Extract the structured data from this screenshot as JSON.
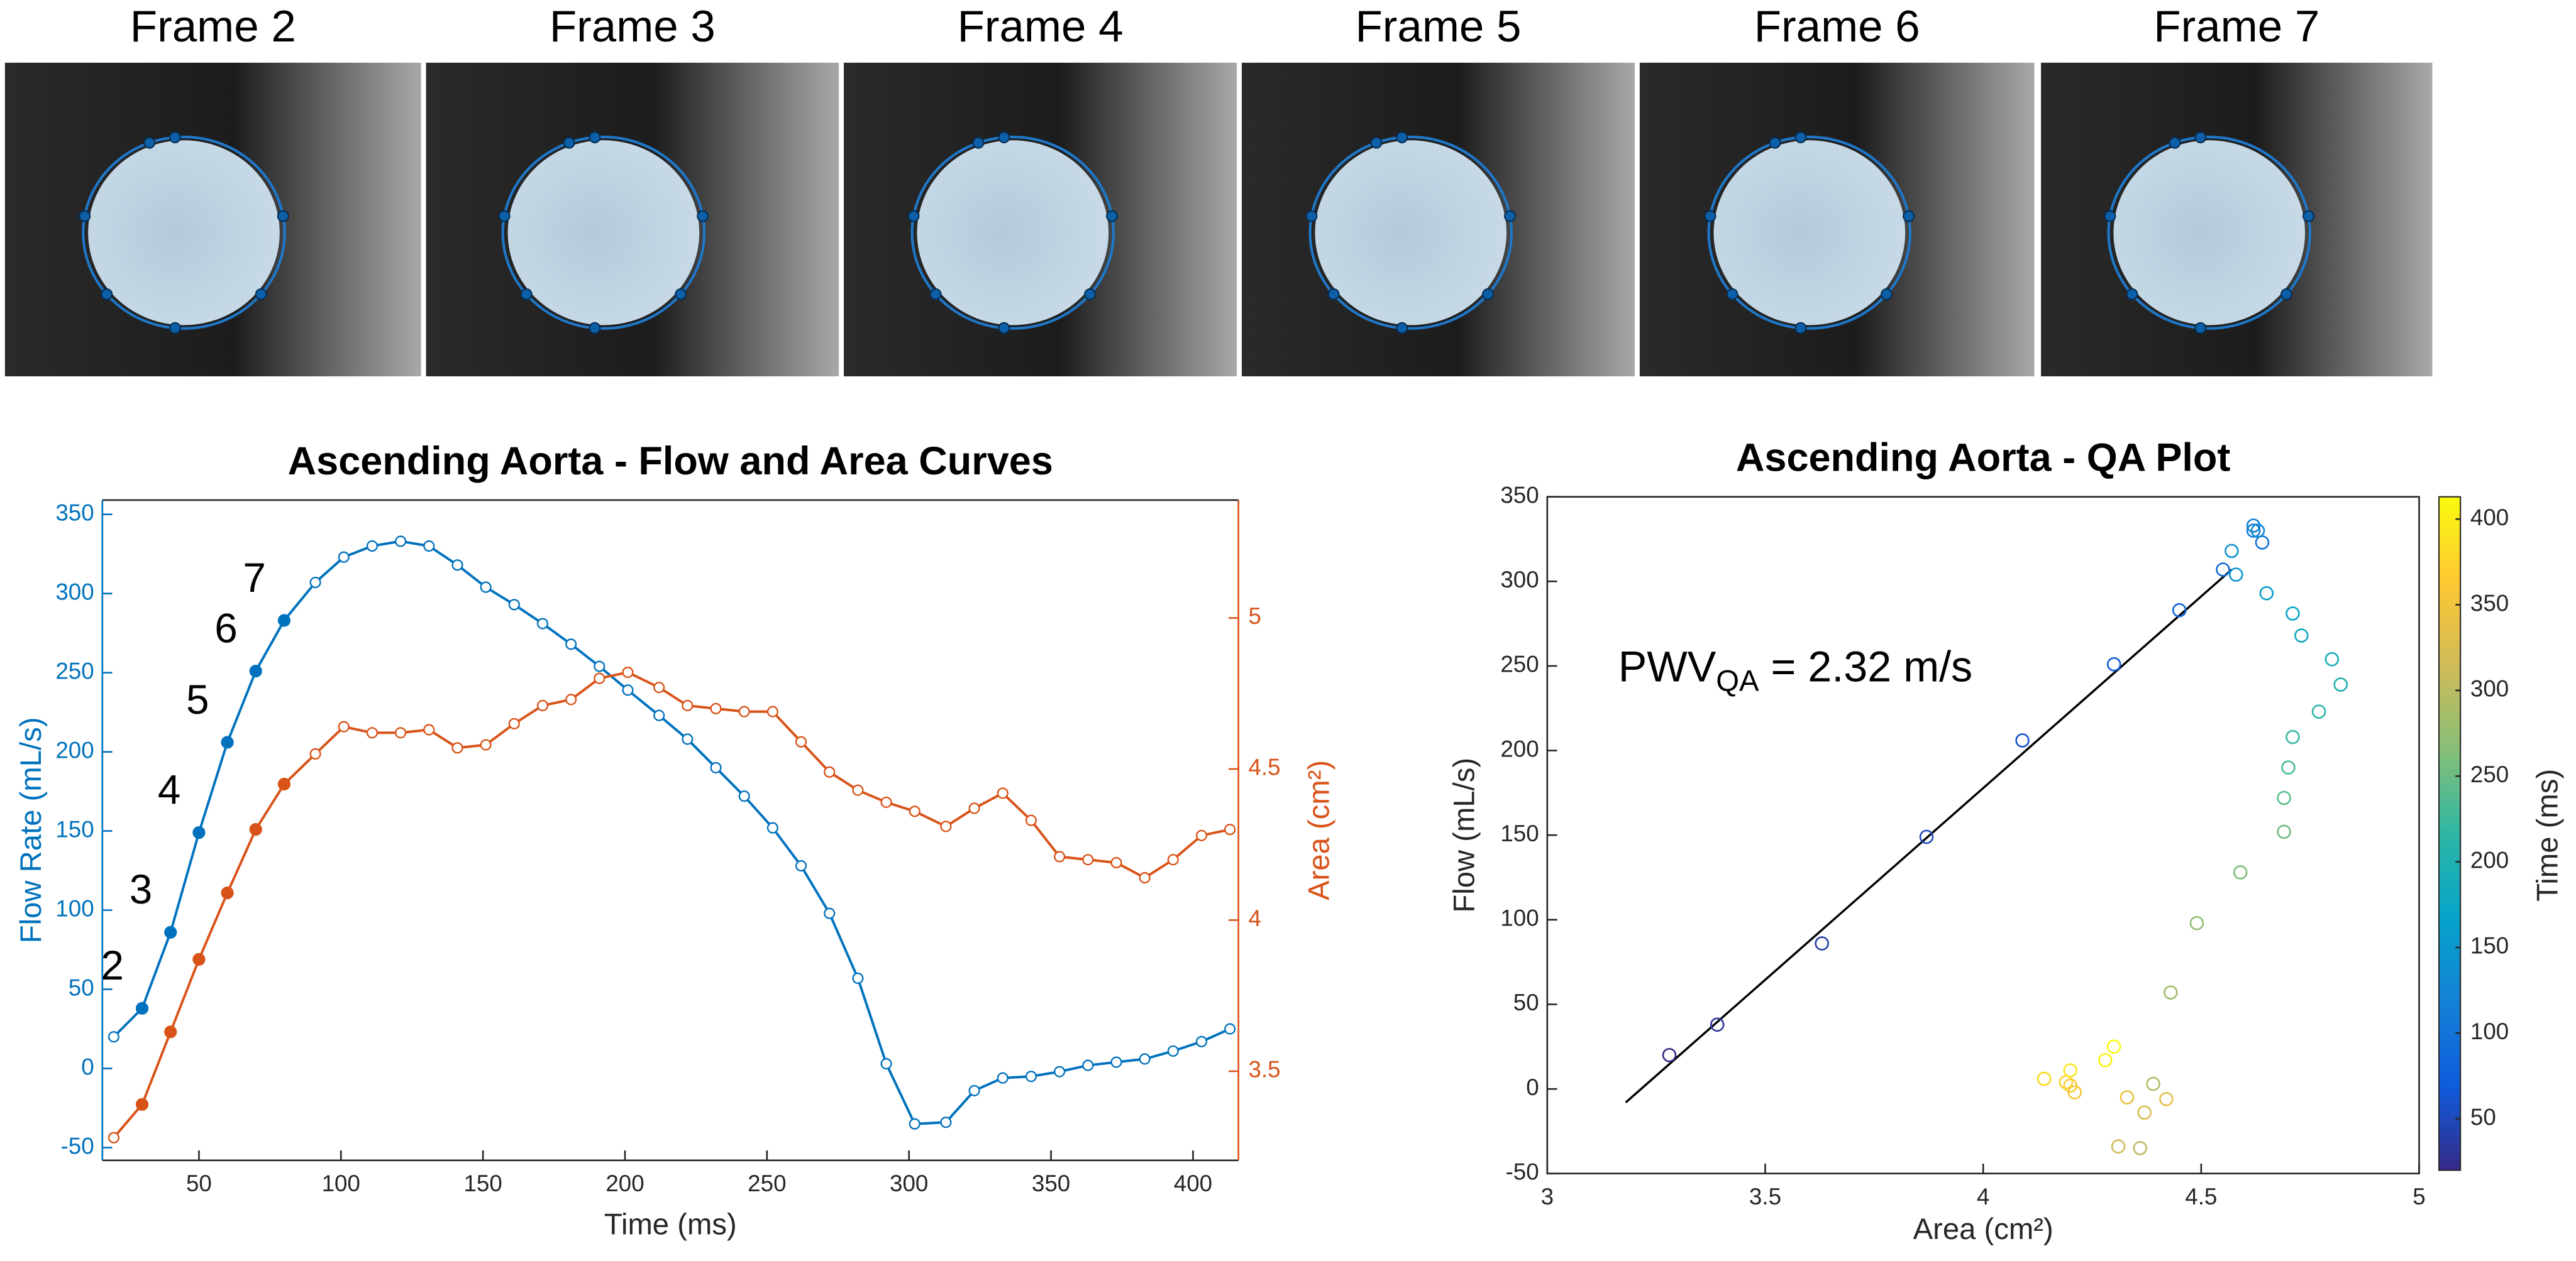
{
  "frames": [
    "Frame 2",
    "Frame 3",
    "Frame 4",
    "Frame 5",
    "Frame 6",
    "Frame 7"
  ],
  "chart_data": [
    {
      "type": "line",
      "title": "Ascending Aorta - Flow and Area Curves",
      "xlabel": "Time (ms)",
      "ylabel": "Flow Rate (mL/s)",
      "y2label": "Area (cm²)",
      "x": [
        20,
        30,
        40,
        50,
        60,
        70,
        80,
        91,
        101,
        111,
        121,
        131,
        141,
        151,
        161,
        171,
        181,
        191,
        201,
        212,
        222,
        232,
        242,
        252,
        262,
        272,
        282,
        292,
        302,
        313,
        323,
        333,
        343,
        353,
        363,
        373,
        383,
        393,
        403,
        413
      ],
      "series": [
        {
          "name": "Flow Rate",
          "color": "#0072bd",
          "axis": "y",
          "values": [
            20,
            38,
            86,
            149,
            206,
            251,
            283,
            307,
            323,
            330,
            333,
            330,
            318,
            304,
            293,
            281,
            268,
            254,
            239,
            223,
            208,
            190,
            172,
            152,
            128,
            98,
            57,
            3,
            -35,
            -34,
            -14,
            -6,
            -5,
            -2,
            2,
            4,
            6,
            11,
            17,
            25
          ]
        },
        {
          "name": "Area",
          "color": "#d95319",
          "axis": "y2",
          "values": [
            3.28,
            3.39,
            3.63,
            3.87,
            4.09,
            4.3,
            4.45,
            4.55,
            4.64,
            4.62,
            4.62,
            4.63,
            4.57,
            4.58,
            4.65,
            4.71,
            4.73,
            4.8,
            4.82,
            4.77,
            4.71,
            4.7,
            4.69,
            4.69,
            4.59,
            4.49,
            4.43,
            4.39,
            4.36,
            4.31,
            4.37,
            4.42,
            4.33,
            4.21,
            4.2,
            4.19,
            4.14,
            4.2,
            4.28,
            4.3
          ]
        }
      ],
      "annotations": [
        {
          "x": 30,
          "text": "2"
        },
        {
          "x": 40,
          "text": "3"
        },
        {
          "x": 50,
          "text": "4"
        },
        {
          "x": 60,
          "text": "5"
        },
        {
          "x": 70,
          "text": "6"
        },
        {
          "x": 80,
          "text": "7"
        }
      ],
      "xlim": [
        16,
        416
      ],
      "xticks": [
        50,
        100,
        150,
        200,
        250,
        300,
        350,
        400
      ],
      "ylim": [
        -58,
        359
      ],
      "yticks": [
        -50,
        0,
        50,
        100,
        150,
        200,
        250,
        300,
        350
      ],
      "y2lim": [
        3.205,
        5.39
      ],
      "y2ticks": [
        3.5,
        4,
        4.5,
        5
      ]
    },
    {
      "type": "scatter",
      "title": "Ascending Aorta - QA Plot",
      "xlabel": "Area (cm²)",
      "ylabel": "Flow (mL/s)",
      "x": [
        3.28,
        3.39,
        3.63,
        3.87,
        4.09,
        4.3,
        4.45,
        4.55,
        4.64,
        4.62,
        4.62,
        4.63,
        4.57,
        4.58,
        4.65,
        4.71,
        4.73,
        4.8,
        4.82,
        4.77,
        4.71,
        4.7,
        4.69,
        4.69,
        4.59,
        4.49,
        4.43,
        4.39,
        4.36,
        4.31,
        4.37,
        4.42,
        4.33,
        4.21,
        4.2,
        4.19,
        4.14,
        4.2,
        4.28,
        4.3
      ],
      "values": [
        20,
        38,
        86,
        149,
        206,
        251,
        283,
        307,
        323,
        330,
        333,
        330,
        318,
        304,
        293,
        281,
        268,
        254,
        239,
        223,
        208,
        190,
        172,
        152,
        128,
        98,
        57,
        3,
        -35,
        -34,
        -14,
        -6,
        -5,
        -2,
        2,
        4,
        6,
        11,
        17,
        25
      ],
      "c": [
        20,
        30,
        40,
        50,
        60,
        70,
        80,
        91,
        101,
        111,
        121,
        131,
        141,
        151,
        161,
        171,
        181,
        191,
        201,
        212,
        222,
        232,
        242,
        252,
        262,
        272,
        282,
        292,
        302,
        313,
        323,
        333,
        343,
        353,
        363,
        373,
        383,
        393,
        403,
        413
      ],
      "fit_line": {
        "x": [
          3.18,
          4.57
        ],
        "y": [
          -8,
          307
        ],
        "color": "#000000"
      },
      "annotation": {
        "text": "PWV",
        "sub": "QA",
        "rest": " = 2.32 m/s"
      },
      "colorbar": {
        "label": "Time (ms)",
        "clim": [
          20,
          413
        ],
        "ticks": [
          50,
          100,
          150,
          200,
          250,
          300,
          350,
          400
        ],
        "colors": [
          "#352a87",
          "#0f5cdd",
          "#1481d6",
          "#06a4ca",
          "#2eb7a4",
          "#87bf77",
          "#d1bb59",
          "#fec832",
          "#f9fb0e"
        ]
      },
      "xlim": [
        3,
        5
      ],
      "xticks": [
        3,
        3.5,
        4,
        4.5,
        5
      ],
      "ylim": [
        -50,
        350
      ],
      "yticks": [
        -50,
        0,
        50,
        100,
        150,
        200,
        250,
        300,
        350
      ]
    }
  ]
}
